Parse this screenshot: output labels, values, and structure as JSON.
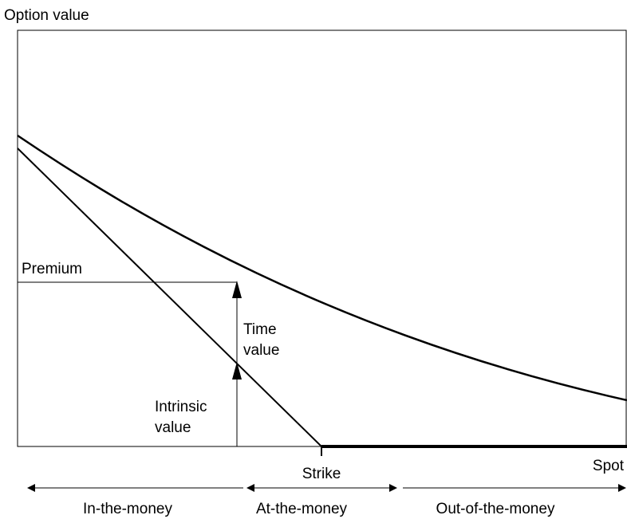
{
  "axis_label": "Option value",
  "labels": {
    "premium": "Premium",
    "time_value": [
      "Time",
      "value"
    ],
    "intrinsic_value": [
      "Intrinsic",
      "value"
    ],
    "strike": "Strike",
    "spot": "Spot"
  },
  "zones": [
    "In-the-money",
    "At-the-money",
    "Out-of-the-money"
  ]
}
